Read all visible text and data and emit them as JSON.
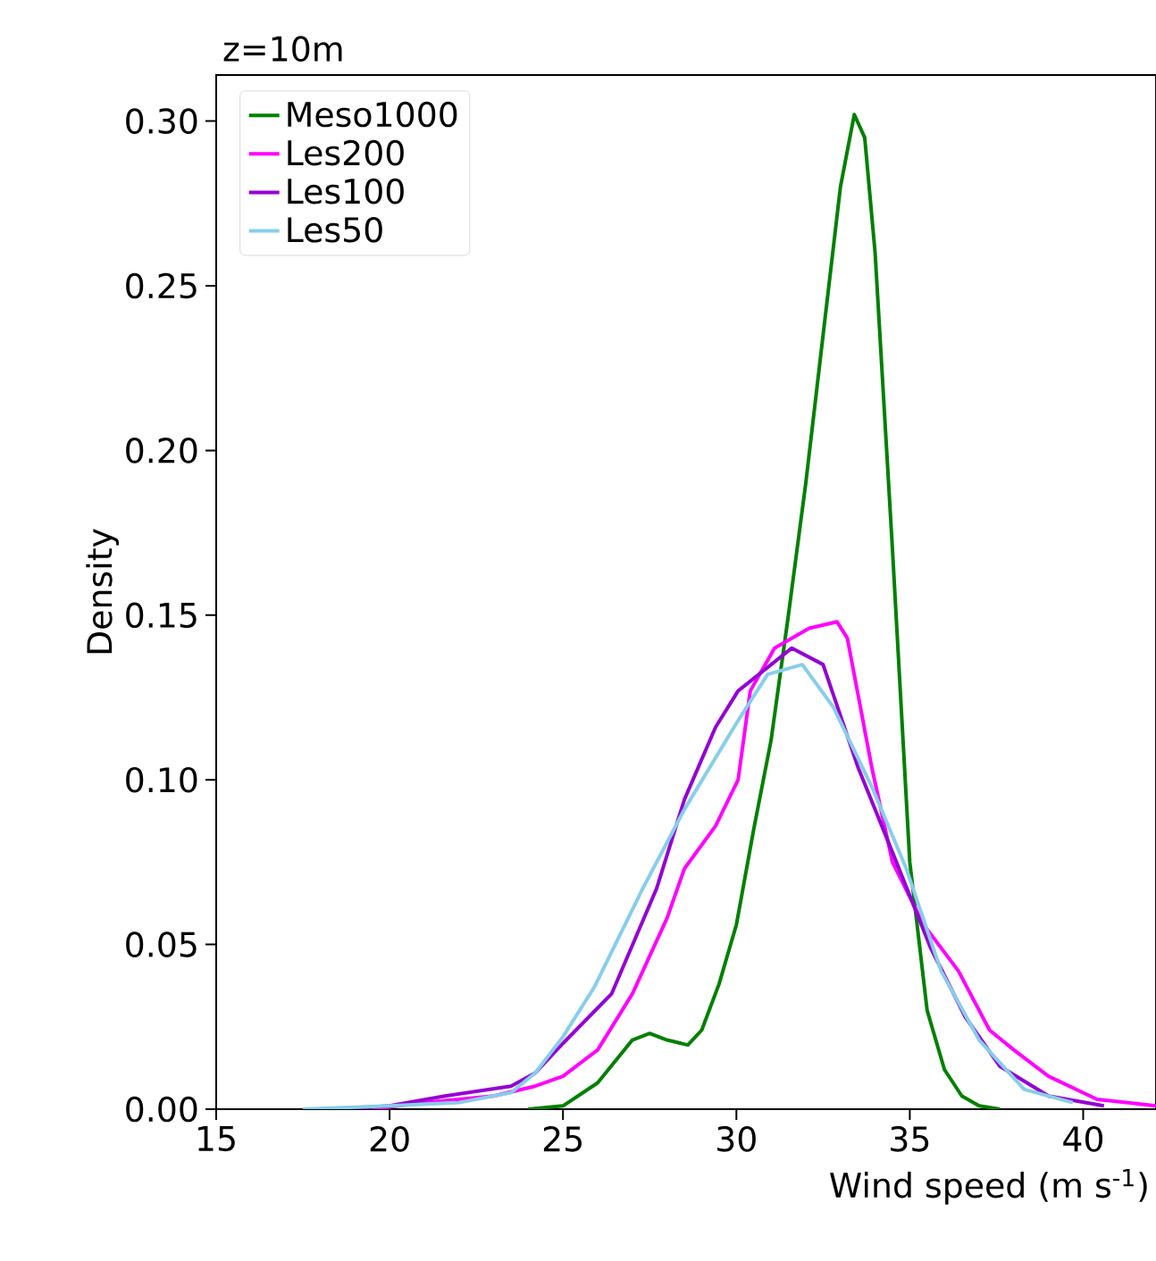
{
  "chart_data": {
    "type": "line",
    "title": "z=10m",
    "xlabel": "Wind speed (m s$^{-1}$)",
    "ylabel": "Density",
    "xlim": [
      15,
      42.1
    ],
    "ylim": [
      0,
      0.314
    ],
    "xticks": [
      15,
      20,
      25,
      30,
      35,
      40
    ],
    "yticks": [
      {
        "value": 0,
        "label": "0.00"
      },
      {
        "value": 0.05,
        "label": "0.05"
      },
      {
        "value": 0.1,
        "label": "0.10"
      },
      {
        "value": 0.15,
        "label": "0.15"
      },
      {
        "value": 0.2,
        "label": "0.20"
      },
      {
        "value": 0.25,
        "label": "0.25"
      },
      {
        "value": 0.3,
        "label": "0.30"
      }
    ],
    "grid": false,
    "legend": "top left",
    "series": [
      {
        "name": "Meso1000",
        "color": "#008000",
        "x": [
          24.0,
          25,
          26,
          27,
          27.5,
          28,
          28.6,
          29,
          29.5,
          30,
          30.5,
          31,
          31.5,
          32,
          32.5,
          33,
          33.4,
          33.7,
          34,
          34.5,
          35,
          35.5,
          36,
          36.5,
          37,
          37.6
        ],
        "values": [
          0,
          0.001,
          0.008,
          0.021,
          0.023,
          0.021,
          0.0195,
          0.024,
          0.038,
          0.056,
          0.085,
          0.112,
          0.15,
          0.19,
          0.235,
          0.28,
          0.302,
          0.295,
          0.26,
          0.17,
          0.075,
          0.03,
          0.012,
          0.004,
          0.001,
          0
        ]
      },
      {
        "name": "Les200",
        "color": "#ff00ff",
        "x": [
          19.5,
          21,
          23,
          24.2,
          25,
          26,
          27,
          28,
          28.5,
          29.4,
          30.05,
          30.4,
          31.1,
          32.1,
          32.9,
          33.2,
          33.9,
          34.5,
          35.4,
          36.4,
          37.3,
          38,
          39,
          40.4,
          42.1
        ],
        "values": [
          0,
          0.002,
          0.004,
          0.007,
          0.01,
          0.018,
          0.035,
          0.058,
          0.073,
          0.086,
          0.1,
          0.127,
          0.14,
          0.146,
          0.148,
          0.143,
          0.104,
          0.075,
          0.056,
          0.042,
          0.024,
          0.018,
          0.01,
          0.003,
          0.001
        ]
      },
      {
        "name": "Les100",
        "color": "#9400d3",
        "x": [
          18.5,
          20,
          21.6,
          23.5,
          24.2,
          25,
          26.4,
          27.7,
          28.5,
          29.4,
          30.05,
          31.6,
          32.5,
          33.5,
          34.5,
          35.6,
          36.6,
          37.6,
          39,
          40.6
        ],
        "values": [
          0,
          0.001,
          0.004,
          0.007,
          0.011,
          0.02,
          0.035,
          0.067,
          0.094,
          0.116,
          0.127,
          0.14,
          0.135,
          0.104,
          0.078,
          0.049,
          0.028,
          0.013,
          0.004,
          0.001
        ]
      },
      {
        "name": "Les50",
        "color": "#87ceeb",
        "x": [
          17.5,
          20,
          22,
          23.5,
          24.2,
          25,
          25.9,
          27.3,
          28.5,
          30.05,
          30.9,
          31.9,
          32.8,
          33.9,
          34.9,
          35.9,
          37,
          38.3,
          39.7
        ],
        "values": [
          0,
          0.001,
          0.002,
          0.005,
          0.011,
          0.022,
          0.037,
          0.067,
          0.091,
          0.118,
          0.132,
          0.135,
          0.122,
          0.098,
          0.073,
          0.042,
          0.021,
          0.006,
          0.002
        ]
      }
    ]
  }
}
